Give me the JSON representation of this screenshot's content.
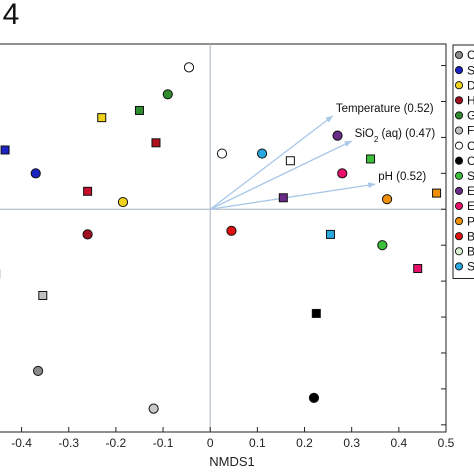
{
  "figure_label": ". 4",
  "chart_data": {
    "type": "scatter",
    "xlabel": "NMDS1",
    "xlim": [
      -0.45,
      0.5
    ],
    "ylim": [
      -0.62,
      0.46
    ],
    "x_ticks": [
      -0.4,
      -0.3,
      -0.2,
      -0.1,
      0,
      0.1,
      0.2,
      0.3,
      0.4,
      0.5
    ],
    "x_tick_labels": [
      "-0.4",
      "-0.3",
      "-0.2",
      "-0.1",
      "0",
      "0.1",
      "0.2",
      "0.3",
      "0.4",
      "0.5"
    ],
    "y_ticks": [
      0.4,
      0.3,
      0.2,
      0.1,
      0,
      -0.1,
      -0.2,
      -0.3,
      -0.4,
      -0.5,
      -0.6
    ],
    "reference_lines": {
      "x": 0,
      "y": 0
    },
    "vectors": [
      {
        "label": "Temperature (0.52)",
        "x": 0.26,
        "y": 0.26
      },
      {
        "label": "SiO2 (aq) (0.47)",
        "x": 0.3,
        "y": 0.19
      },
      {
        "label": "pH (0.52)",
        "x": 0.35,
        "y": 0.07
      }
    ],
    "points": [
      {
        "x": -0.045,
        "y": 0.395,
        "shape": "circle",
        "color": "#ffffff"
      },
      {
        "x": -0.09,
        "y": 0.32,
        "shape": "circle",
        "color": "#2e8b2e"
      },
      {
        "x": -0.15,
        "y": 0.275,
        "shape": "square",
        "color": "#2e8b2e"
      },
      {
        "x": -0.23,
        "y": 0.255,
        "shape": "square",
        "color": "#f0d21a"
      },
      {
        "x": -0.115,
        "y": 0.185,
        "shape": "square",
        "color": "#b0101e"
      },
      {
        "x": -0.435,
        "y": 0.165,
        "shape": "square",
        "color": "#1a22c0"
      },
      {
        "x": -0.37,
        "y": 0.1,
        "shape": "circle",
        "color": "#1a22c0"
      },
      {
        "x": -0.26,
        "y": 0.05,
        "shape": "square",
        "color": "#c8102e"
      },
      {
        "x": -0.185,
        "y": 0.02,
        "shape": "circle",
        "color": "#f0d21a"
      },
      {
        "x": -0.26,
        "y": -0.07,
        "shape": "circle",
        "color": "#a01020"
      },
      {
        "x": -0.455,
        "y": -0.18,
        "shape": "square",
        "color": "#8a8a8a"
      },
      {
        "x": -0.355,
        "y": -0.24,
        "shape": "square",
        "color": "#c0c0c0"
      },
      {
        "x": -0.365,
        "y": -0.45,
        "shape": "circle",
        "color": "#8a8a8a"
      },
      {
        "x": -0.12,
        "y": -0.555,
        "shape": "circle",
        "color": "#c8c8c8"
      },
      {
        "x": 0.025,
        "y": 0.155,
        "shape": "circle",
        "color": "#ffffff"
      },
      {
        "x": 0.11,
        "y": 0.155,
        "shape": "circle",
        "color": "#29a8e0"
      },
      {
        "x": 0.17,
        "y": 0.135,
        "shape": "square",
        "color": "#ffffff"
      },
      {
        "x": 0.27,
        "y": 0.205,
        "shape": "circle",
        "color": "#6a2a8a"
      },
      {
        "x": 0.34,
        "y": 0.14,
        "shape": "square",
        "color": "#3cc03c"
      },
      {
        "x": 0.28,
        "y": 0.1,
        "shape": "circle",
        "color": "#e8106a"
      },
      {
        "x": 0.155,
        "y": 0.032,
        "shape": "square",
        "color": "#6a2a8a"
      },
      {
        "x": 0.375,
        "y": 0.028,
        "shape": "circle",
        "color": "#f0900a"
      },
      {
        "x": 0.48,
        "y": 0.045,
        "shape": "square",
        "color": "#f0900a"
      },
      {
        "x": 0.045,
        "y": -0.06,
        "shape": "circle",
        "color": "#e01010"
      },
      {
        "x": 0.255,
        "y": -0.07,
        "shape": "square",
        "color": "#29a8e0"
      },
      {
        "x": 0.365,
        "y": -0.1,
        "shape": "circle",
        "color": "#3cc03c"
      },
      {
        "x": 0.44,
        "y": -0.165,
        "shape": "square",
        "color": "#e8106a"
      },
      {
        "x": 0.225,
        "y": -0.29,
        "shape": "square",
        "color": "#000000"
      },
      {
        "x": 0.22,
        "y": -0.525,
        "shape": "circle",
        "color": "#000000"
      }
    ],
    "legend": {
      "placement": "right",
      "entries": [
        {
          "label": "C",
          "shape": "circle",
          "color": "#8a8a8a"
        },
        {
          "label": "S",
          "shape": "circle",
          "color": "#1a22c0"
        },
        {
          "label": "D",
          "shape": "circle",
          "color": "#f0d21a"
        },
        {
          "label": "H",
          "shape": "circle",
          "color": "#a01020"
        },
        {
          "label": "G",
          "shape": "circle",
          "color": "#2e8b2e"
        },
        {
          "label": "F",
          "shape": "circle",
          "color": "#c0c0c0"
        },
        {
          "label": "C",
          "shape": "circle",
          "color": "#ffffff"
        },
        {
          "label": "C",
          "shape": "circle",
          "color": "#000000"
        },
        {
          "label": "S",
          "shape": "circle",
          "color": "#3cc03c"
        },
        {
          "label": "E",
          "shape": "circle",
          "color": "#6a2a8a"
        },
        {
          "label": "E",
          "shape": "circle",
          "color": "#e8106a"
        },
        {
          "label": "P",
          "shape": "circle",
          "color": "#f0900a"
        },
        {
          "label": "B",
          "shape": "circle",
          "color": "#e01010"
        },
        {
          "label": "B",
          "shape": "circle",
          "color": "#d8f0d0"
        },
        {
          "label": "S",
          "shape": "circle",
          "color": "#29a8e0"
        }
      ]
    }
  }
}
